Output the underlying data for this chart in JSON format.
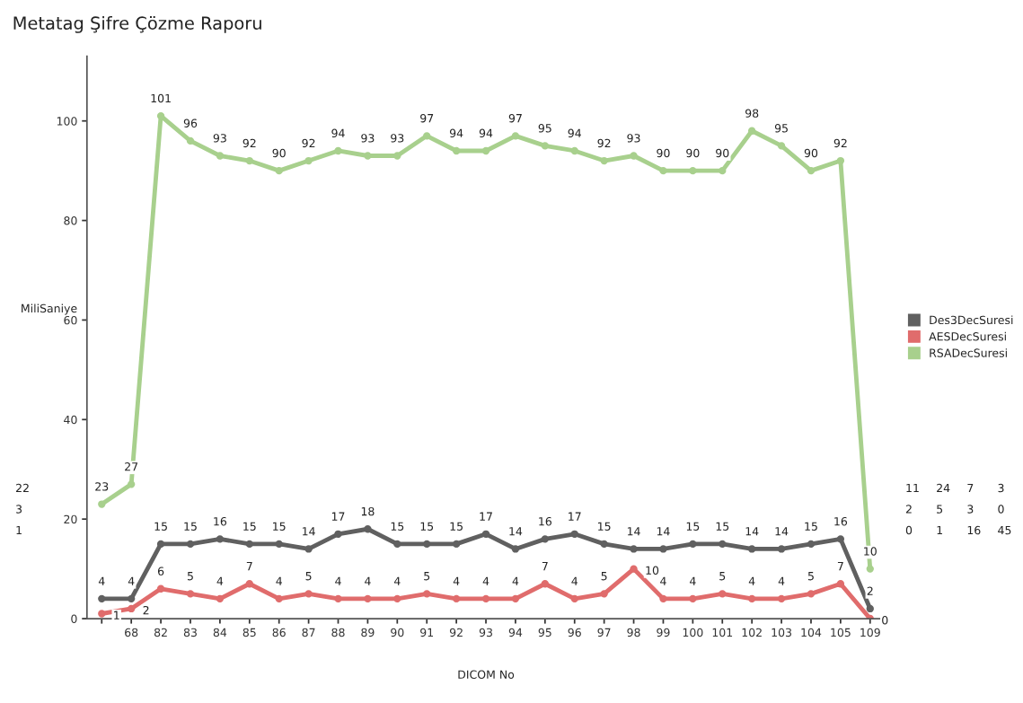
{
  "chart_data": {
    "type": "line",
    "title": "Metatag Şifre Çözme Raporu",
    "xlabel": "DICOM No",
    "ylabel": "MiliSaniye",
    "categories": [
      null,
      "68",
      "82",
      "83",
      "84",
      "85",
      "86",
      "87",
      "88",
      "89",
      "90",
      "91",
      "92",
      "93",
      "94",
      "95",
      "96",
      "97",
      "98",
      "99",
      "100",
      "101",
      "102",
      "103",
      "104",
      "105",
      "109"
    ],
    "series": [
      {
        "name": "Des3DecSuresi",
        "color": "#606060",
        "values": [
          4,
          4,
          15,
          15,
          16,
          15,
          15,
          14,
          17,
          18,
          15,
          15,
          15,
          17,
          14,
          16,
          17,
          15,
          14,
          14,
          15,
          15,
          14,
          14,
          15,
          16,
          2
        ]
      },
      {
        "name": "AESDecSuresi",
        "color": "#e06c6c",
        "values": [
          1,
          2,
          6,
          5,
          4,
          7,
          4,
          5,
          4,
          4,
          4,
          5,
          4,
          4,
          4,
          7,
          4,
          5,
          10,
          4,
          4,
          5,
          4,
          4,
          5,
          7,
          0
        ]
      },
      {
        "name": "RSADecSuresi",
        "color": "#a8d08d",
        "values": [
          23,
          27,
          101,
          96,
          93,
          92,
          90,
          92,
          94,
          93,
          93,
          97,
          94,
          94,
          97,
          95,
          94,
          92,
          93,
          90,
          90,
          90,
          98,
          95,
          90,
          92,
          10
        ]
      }
    ],
    "ylim": [
      0,
      113
    ],
    "yticks": [
      0,
      20,
      40,
      60,
      80,
      100
    ],
    "data_labels": true,
    "marker": "circle",
    "line_style": "solid",
    "grid": false,
    "legend": "right",
    "annotations": [
      "22",
      "3",
      "1",
      "11",
      "2",
      "0",
      "24",
      "5",
      "1",
      "7",
      "3",
      "16",
      "3",
      "0",
      "45"
    ]
  }
}
